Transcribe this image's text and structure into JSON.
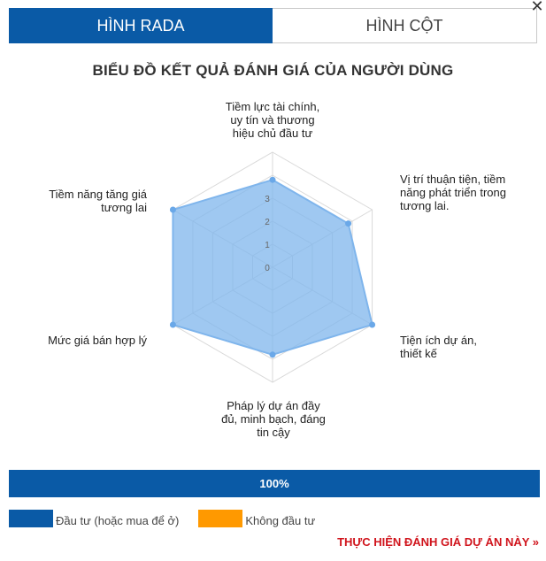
{
  "tabs": [
    {
      "label": "HÌNH RADA",
      "active": true
    },
    {
      "label": "HÌNH CỘT",
      "active": false
    }
  ],
  "close_icon": "close-icon",
  "chart_data": {
    "type": "radar",
    "title": "BIỂU ĐỒ KẾT QUẢ ĐÁNH GIÁ CỦA NGƯỜI DÙNG",
    "categories": [
      "Tiềm lực tài chính, uy tín và thương hiệu chủ đầu tư",
      "Vị trí thuận tiện, tiềm năng phát triển trong tương lai.",
      "Tiện ích dự án, thiết kế",
      "Pháp lý dự án đầy đủ, minh bạch, đáng tin cậy",
      "Mức giá bán hợp lý",
      "Tiềm năng tăng giá tương lai"
    ],
    "ticks": [
      "0",
      "1",
      "2",
      "3"
    ],
    "rlim": [
      0,
      5
    ],
    "series": [
      {
        "values": [
          3.8,
          3.8,
          5,
          3.8,
          5,
          5
        ],
        "color": "#7fb5ec"
      }
    ]
  },
  "progress": {
    "value": 100,
    "label": "100%"
  },
  "legend": [
    {
      "label": "Đầu tư (hoặc mua để ở)",
      "color": "#0a5aa6"
    },
    {
      "label": "Không đầu tư",
      "color": "#ff9900"
    }
  ],
  "cta": {
    "label": "THỰC HIỆN ĐÁNH GIÁ DỰ ÁN NÀY »"
  }
}
